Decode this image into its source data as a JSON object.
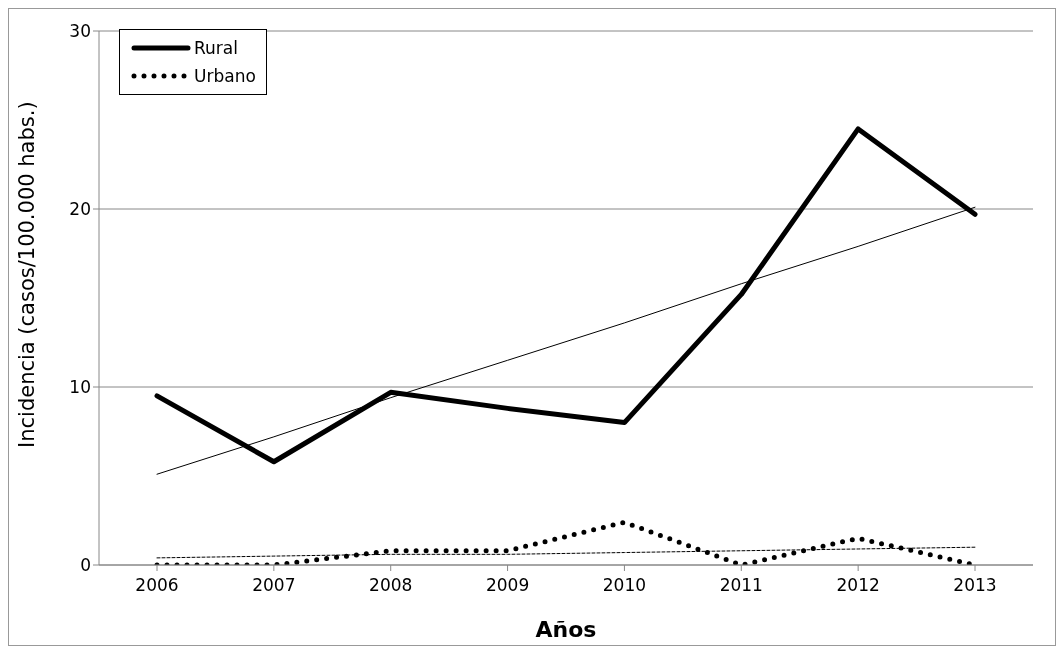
{
  "chart_data": {
    "type": "line",
    "xlabel": "Años",
    "ylabel": "Incidencia (casos/100.000 habs.)",
    "categories": [
      "2006",
      "2007",
      "2008",
      "2009",
      "2010",
      "2011",
      "2012",
      "2013"
    ],
    "series": [
      {
        "name": "Rural",
        "color": "#000000",
        "line_style": "solid",
        "values": [
          9.5,
          5.8,
          9.7,
          8.8,
          8.0,
          15.2,
          24.5,
          19.7
        ]
      },
      {
        "name": "Urbano",
        "color": "#000000",
        "line_style": "dotted",
        "values": [
          0,
          0,
          0.8,
          0.8,
          2.4,
          0,
          1.5,
          0
        ]
      },
      {
        "type": "line",
        "color": "#000000",
        "line_style": "solid",
        "values": [
          5.1,
          7.2,
          9.4,
          11.5,
          13.6,
          15.8,
          17.9,
          20.1
        ]
      },
      {
        "type": "line",
        "color": "#000000",
        "line_style": "dashed",
        "values": [
          0.4,
          0.5,
          0.6,
          0.6,
          0.7,
          0.8,
          0.9,
          1.0
        ]
      }
    ],
    "ylim": [
      0,
      30
    ],
    "yticks": [
      0,
      10,
      20,
      30
    ],
    "grid": "y",
    "legend": "top left",
    "marker": "none"
  }
}
